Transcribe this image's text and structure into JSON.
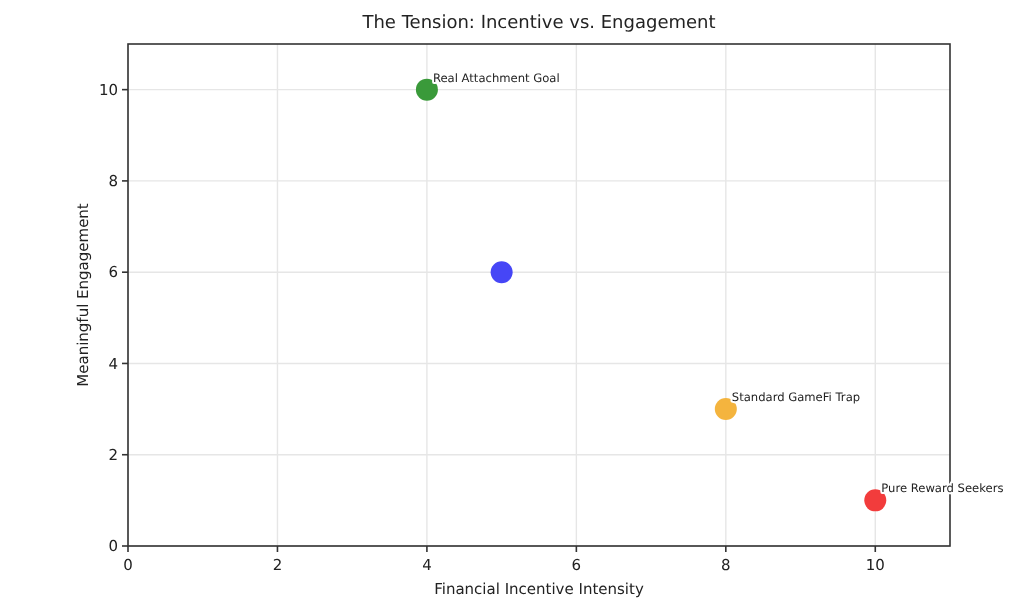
{
  "chart_data": {
    "type": "scatter",
    "title": "The Tension: Incentive vs. Engagement",
    "xlabel": "Financial Incentive Intensity",
    "ylabel": "Meaningful Engagement",
    "x": [
      4,
      5,
      8,
      10
    ],
    "values": [
      10,
      6,
      3,
      1
    ],
    "colors": [
      "#3a9a3a",
      "#4646f6",
      "#f4b43e",
      "#f23c3c"
    ],
    "xlim": [
      0,
      11
    ],
    "xticks": [
      0,
      2,
      4,
      6,
      8,
      10
    ],
    "ylim": [
      0,
      11
    ],
    "yticks": [
      0,
      2,
      4,
      6,
      8,
      10
    ],
    "grid": true,
    "marker": "circle",
    "annotations": [
      {
        "text": "Real Attachment Goal",
        "x": 4,
        "y": 10
      },
      {
        "text": "Standard GameFi Trap",
        "x": 8,
        "y": 3
      },
      {
        "text": "Pure Reward Seekers",
        "x": 10,
        "y": 1
      }
    ]
  }
}
